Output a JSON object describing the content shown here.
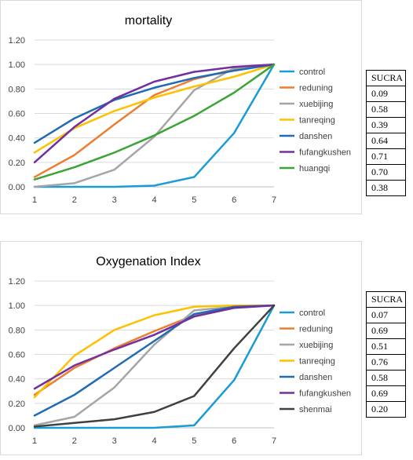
{
  "charts": [
    {
      "title": "mortality",
      "sucra_header": "SUCRA",
      "chart_data": {
        "type": "line",
        "title": "mortality",
        "x": [
          1,
          2,
          3,
          4,
          5,
          6,
          7
        ],
        "ylim": [
          0,
          1.2
        ],
        "yticks": [
          "0.00",
          "0.20",
          "0.40",
          "0.60",
          "0.80",
          "1.00",
          "1.20"
        ],
        "grid": true,
        "legend": "right",
        "series": [
          {
            "name": "control",
            "color": "#1a9bd6",
            "values": [
              0,
              0,
              0,
              0.01,
              0.08,
              0.44,
              1.0
            ],
            "sucra": "0.09"
          },
          {
            "name": "reduning",
            "color": "#ed7d31",
            "values": [
              0.08,
              0.26,
              0.51,
              0.75,
              0.88,
              0.96,
              1.0
            ],
            "sucra": "0.58"
          },
          {
            "name": "xuebijing",
            "color": "#a5a5a5",
            "values": [
              0,
              0.03,
              0.14,
              0.41,
              0.79,
              0.97,
              1.0
            ],
            "sucra": "0.39"
          },
          {
            "name": "tanreqing",
            "color": "#ffc000",
            "values": [
              0.28,
              0.48,
              0.62,
              0.73,
              0.82,
              0.9,
              1.0
            ],
            "sucra": "0.64"
          },
          {
            "name": "danshen",
            "color": "#1f6bb4",
            "values": [
              0.36,
              0.56,
              0.71,
              0.81,
              0.89,
              0.95,
              1.0
            ],
            "sucra": "0.71"
          },
          {
            "name": "fufangkushen",
            "color": "#7030a0",
            "values": [
              0.2,
              0.49,
              0.72,
              0.86,
              0.94,
              0.98,
              1.0
            ],
            "sucra": "0.70"
          },
          {
            "name": "huangqi",
            "color": "#3aa535",
            "values": [
              0.06,
              0.16,
              0.28,
              0.42,
              0.58,
              0.77,
              1.0
            ],
            "sucra": "0.38"
          }
        ]
      }
    },
    {
      "title": "Oxygenation Index",
      "sucra_header": "SUCRA",
      "chart_data": {
        "type": "line",
        "title": "Oxygenation Index",
        "x": [
          1,
          2,
          3,
          4,
          5,
          6,
          7
        ],
        "ylim": [
          0,
          1.2
        ],
        "yticks": [
          "0.00",
          "0.20",
          "0.40",
          "0.60",
          "0.80",
          "1.00",
          "1.20"
        ],
        "grid": true,
        "legend": "right",
        "series": [
          {
            "name": "control",
            "color": "#1a9bd6",
            "values": [
              0,
              0,
              0,
              0,
              0.02,
              0.39,
              1.0
            ],
            "sucra": "0.07"
          },
          {
            "name": "reduning",
            "color": "#ed7d31",
            "values": [
              0.27,
              0.49,
              0.65,
              0.79,
              0.92,
              0.99,
              1.0
            ],
            "sucra": "0.69"
          },
          {
            "name": "xuebijing",
            "color": "#a5a5a5",
            "values": [
              0.02,
              0.09,
              0.33,
              0.68,
              0.96,
              0.99,
              1.0
            ],
            "sucra": "0.51"
          },
          {
            "name": "tanreqing",
            "color": "#ffc000",
            "values": [
              0.25,
              0.59,
              0.8,
              0.92,
              0.99,
              1.0,
              1.0
            ],
            "sucra": "0.76"
          },
          {
            "name": "danshen",
            "color": "#1f6bb4",
            "values": [
              0.1,
              0.27,
              0.49,
              0.71,
              0.93,
              0.99,
              1.0
            ],
            "sucra": "0.58"
          },
          {
            "name": "fufangkushen",
            "color": "#7030a0",
            "values": [
              0.32,
              0.51,
              0.64,
              0.76,
              0.91,
              0.98,
              1.0
            ],
            "sucra": "0.69"
          },
          {
            "name": "shenmai",
            "color": "#404040",
            "values": [
              0.01,
              0.04,
              0.07,
              0.13,
              0.26,
              0.65,
              1.0
            ],
            "sucra": "0.20"
          }
        ]
      }
    }
  ]
}
